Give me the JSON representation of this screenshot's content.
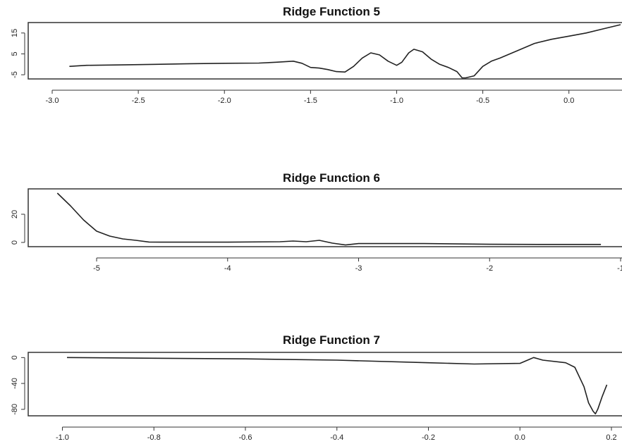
{
  "chart_data": [
    {
      "type": "line",
      "title": "Ridge Function 5",
      "xlabel": "",
      "ylabel": "",
      "xlim": [
        -3.0,
        0.3
      ],
      "ylim": [
        -7,
        20
      ],
      "x_ticks": [
        -3.0,
        -2.5,
        -2.0,
        -1.5,
        -1.0,
        -0.5,
        0.0
      ],
      "x_tick_labels": [
        "-3.0",
        "-2.5",
        "-2.0",
        "-1.5",
        "-1.0",
        "-0.5",
        "0.0"
      ],
      "y_ticks": [
        -5,
        5,
        15
      ],
      "y_tick_labels": [
        "-5",
        "5",
        "15"
      ],
      "grid": false,
      "series": [
        {
          "x": [
            -2.9,
            -2.8,
            -2.6,
            -2.4,
            -2.2,
            -2.0,
            -1.8,
            -1.7,
            -1.6,
            -1.55,
            -1.5,
            -1.45,
            -1.4,
            -1.35,
            -1.3,
            -1.25,
            -1.2,
            -1.15,
            -1.1,
            -1.05,
            -1.0,
            -0.97,
            -0.93,
            -0.9,
            -0.85,
            -0.8,
            -0.75,
            -0.7,
            -0.65,
            -0.62,
            -0.6,
            -0.55,
            -0.5,
            -0.45,
            -0.4,
            -0.3,
            -0.2,
            -0.1,
            0.0,
            0.1,
            0.2,
            0.3
          ],
          "y": [
            -1,
            -0.5,
            -0.3,
            0,
            0.3,
            0.5,
            0.6,
            1,
            1.5,
            0.5,
            -1.5,
            -1.8,
            -2.5,
            -3.5,
            -3.7,
            -1,
            3,
            5.5,
            4.5,
            1.5,
            -0.5,
            1,
            5.5,
            7.2,
            6,
            2.5,
            0,
            -1.5,
            -3.5,
            -6.5,
            -6.5,
            -5.5,
            -1,
            1.5,
            3,
            6.5,
            10,
            12,
            13.5,
            15,
            17,
            19
          ]
        }
      ]
    },
    {
      "type": "line",
      "title": "Ridge Function 6",
      "xlabel": "",
      "ylabel": "",
      "xlim": [
        -5.35,
        -1.0
      ],
      "ylim": [
        -3,
        38
      ],
      "x_ticks": [
        -5,
        -4,
        -3,
        -2,
        -1
      ],
      "x_tick_labels": [
        "-5",
        "-4",
        "-3",
        "-2",
        "-1"
      ],
      "y_ticks": [
        0,
        20
      ],
      "y_tick_labels": [
        "0",
        "20"
      ],
      "grid": false,
      "series": [
        {
          "x": [
            -5.3,
            -5.2,
            -5.1,
            -5.0,
            -4.9,
            -4.8,
            -4.7,
            -4.6,
            -4.5,
            -4.0,
            -3.6,
            -3.5,
            -3.4,
            -3.3,
            -3.2,
            -3.1,
            -3.0,
            -2.9,
            -2.5,
            -2.0,
            -1.6,
            -1.15
          ],
          "y": [
            35,
            26,
            16,
            8,
            4.5,
            2.5,
            1.5,
            0.3,
            0.2,
            0.2,
            0.5,
            1,
            0.5,
            1.5,
            -0.5,
            -1.8,
            -0.8,
            -0.8,
            -0.8,
            -1.3,
            -1.4,
            -1.4
          ]
        }
      ]
    },
    {
      "type": "line",
      "title": "Ridge Function 7",
      "xlabel": "",
      "ylabel": "",
      "xlim": [
        -1.03,
        0.22
      ],
      "ylim": [
        -90,
        8
      ],
      "x_ticks": [
        -1.0,
        -0.8,
        -0.6,
        -0.4,
        -0.2,
        0.0,
        0.2
      ],
      "x_tick_labels": [
        "-1.0",
        "-0.8",
        "-0.6",
        "-0.4",
        "-0.2",
        "0.0",
        "0.2"
      ],
      "y_ticks": [
        0,
        -40,
        -80
      ],
      "y_tick_labels": [
        "0",
        "-40",
        "-80"
      ],
      "grid": false,
      "series": [
        {
          "x": [
            -0.99,
            -0.8,
            -0.6,
            -0.4,
            -0.2,
            -0.1,
            0.0,
            0.02,
            0.03,
            0.05,
            0.1,
            0.12,
            0.14,
            0.15,
            0.16,
            0.165,
            0.17,
            0.18,
            0.19
          ],
          "y": [
            0,
            -1,
            -2,
            -4,
            -8,
            -10,
            -9,
            -3,
            0,
            -4,
            -8,
            -15,
            -45,
            -70,
            -83,
            -87,
            -80,
            -60,
            -42
          ]
        }
      ]
    }
  ]
}
